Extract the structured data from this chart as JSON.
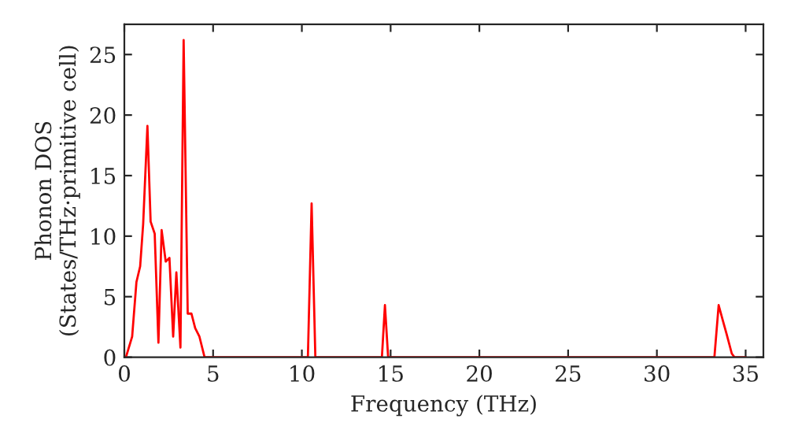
{
  "chart_data": {
    "type": "line",
    "xlabel": "Frequency (THz)",
    "ylabel": "Phonon DOS\n(States/THz·primitive cell)",
    "xlim": [
      0,
      36
    ],
    "ylim": [
      0,
      27.5
    ],
    "xticks": [
      0,
      5,
      10,
      15,
      20,
      25,
      30,
      35
    ],
    "yticks": [
      0,
      5,
      10,
      15,
      20,
      25
    ],
    "grid": false,
    "legend": false,
    "series": [
      {
        "color": "#ff0000",
        "x": [
          0.09,
          0.44,
          0.68,
          0.89,
          1.06,
          1.3,
          1.48,
          1.71,
          1.92,
          2.1,
          2.33,
          2.54,
          2.75,
          2.93,
          3.16,
          3.34,
          3.57,
          3.78,
          3.99,
          4.23,
          4.52,
          10.34,
          10.55,
          10.76,
          14.51,
          14.68,
          14.86,
          33.24,
          33.48,
          33.72,
          33.93,
          34.22,
          34.37,
          35.0
        ],
        "values": [
          0,
          1.7,
          6.2,
          7.5,
          11,
          19.1,
          11.2,
          10.2,
          1.2,
          10.5,
          7.9,
          8.2,
          1.7,
          7.0,
          0.8,
          26.2,
          3.6,
          3.6,
          2.4,
          1.7,
          0,
          0,
          12.7,
          0,
          0,
          4.3,
          0,
          0,
          4.3,
          3.0,
          1.9,
          0.3,
          0,
          0
        ]
      }
    ]
  }
}
